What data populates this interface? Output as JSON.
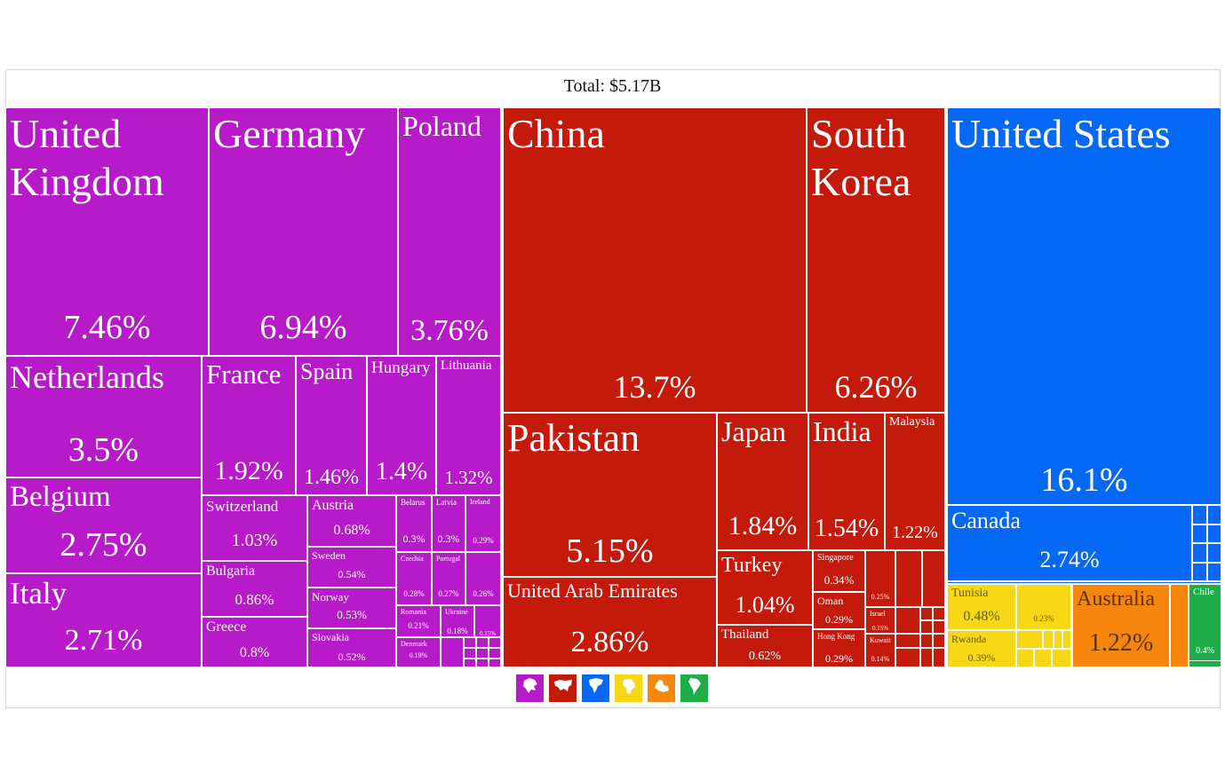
{
  "total_label": "Total: $5.17B",
  "colors": {
    "europe": "#b61ac9",
    "asia": "#c41a0c",
    "north_america": "#0568f6",
    "africa": "#f7d716",
    "oceania": "#f7860c",
    "south_america": "#1fad4a"
  },
  "legend": [
    {
      "name": "europe-icon",
      "color": "#b61ac9"
    },
    {
      "name": "asia-icon",
      "color": "#c41a0c"
    },
    {
      "name": "north-america-icon",
      "color": "#0568f6"
    },
    {
      "name": "africa-icon",
      "color": "#f7d716"
    },
    {
      "name": "oceania-icon",
      "color": "#f7860c"
    },
    {
      "name": "south-america-icon",
      "color": "#1fad4a"
    }
  ],
  "chart_data": {
    "type": "treemap",
    "total": "$5.17B",
    "cells": [
      {
        "name": "United Kingdom",
        "share": "7.46%",
        "continent": "europe"
      },
      {
        "name": "Germany",
        "share": "6.94%",
        "continent": "europe"
      },
      {
        "name": "Poland",
        "share": "3.76%",
        "continent": "europe"
      },
      {
        "name": "Netherlands",
        "share": "3.5%",
        "continent": "europe"
      },
      {
        "name": "Belgium",
        "share": "2.75%",
        "continent": "europe"
      },
      {
        "name": "Italy",
        "share": "2.71%",
        "continent": "europe"
      },
      {
        "name": "France",
        "share": "1.92%",
        "continent": "europe"
      },
      {
        "name": "Spain",
        "share": "1.46%",
        "continent": "europe"
      },
      {
        "name": "Hungary",
        "share": "1.4%",
        "continent": "europe"
      },
      {
        "name": "Lithuania",
        "share": "1.32%",
        "continent": "europe"
      },
      {
        "name": "Switzerland",
        "share": "1.03%",
        "continent": "europe"
      },
      {
        "name": "Bulgaria",
        "share": "0.86%",
        "continent": "europe"
      },
      {
        "name": "Greece",
        "share": "0.8%",
        "continent": "europe"
      },
      {
        "name": "Austria",
        "share": "0.68%",
        "continent": "europe"
      },
      {
        "name": "Sweden",
        "share": "0.54%",
        "continent": "europe"
      },
      {
        "name": "Norway",
        "share": "0.53%",
        "continent": "europe"
      },
      {
        "name": "Slovakia",
        "share": "0.52%",
        "continent": "europe"
      },
      {
        "name": "Belarus",
        "share": "0.3%",
        "continent": "europe"
      },
      {
        "name": "Latvia",
        "share": "0.3%",
        "continent": "europe"
      },
      {
        "name": "Ireland",
        "share": "0.29%",
        "continent": "europe"
      },
      {
        "name": "Czechia",
        "share": "0.28%",
        "continent": "europe"
      },
      {
        "name": "Portugal",
        "share": "0.27%",
        "continent": "europe"
      },
      {
        "name": "",
        "share": "0.26%",
        "continent": "europe"
      },
      {
        "name": "Romania",
        "share": "0.21%",
        "continent": "europe"
      },
      {
        "name": "Ukraine",
        "share": "0.18%",
        "continent": "europe"
      },
      {
        "name": "",
        "share": "0.15%",
        "continent": "europe"
      },
      {
        "name": "Denmark",
        "share": "0.19%",
        "continent": "europe"
      },
      {
        "name": "China",
        "share": "13.7%",
        "continent": "asia"
      },
      {
        "name": "South Korea",
        "share": "6.26%",
        "continent": "asia"
      },
      {
        "name": "Pakistan",
        "share": "5.15%",
        "continent": "asia"
      },
      {
        "name": "United Arab Emirates",
        "share": "2.86%",
        "continent": "asia"
      },
      {
        "name": "Japan",
        "share": "1.84%",
        "continent": "asia"
      },
      {
        "name": "India",
        "share": "1.54%",
        "continent": "asia"
      },
      {
        "name": "Malaysia",
        "share": "1.22%",
        "continent": "asia"
      },
      {
        "name": "Turkey",
        "share": "1.04%",
        "continent": "asia"
      },
      {
        "name": "Thailand",
        "share": "0.62%",
        "continent": "asia"
      },
      {
        "name": "Singapore",
        "share": "0.34%",
        "continent": "asia"
      },
      {
        "name": "Oman",
        "share": "0.29%",
        "continent": "asia"
      },
      {
        "name": "Hong Kong",
        "share": "0.29%",
        "continent": "asia"
      },
      {
        "name": "",
        "share": "0.25%",
        "continent": "asia"
      },
      {
        "name": "Israel",
        "share": "0.15%",
        "continent": "asia"
      },
      {
        "name": "Kuwait",
        "share": "0.14%",
        "continent": "asia"
      },
      {
        "name": "United States",
        "share": "16.1%",
        "continent": "north_america"
      },
      {
        "name": "Canada",
        "share": "2.74%",
        "continent": "north_america"
      },
      {
        "name": "Tunisia",
        "share": "0.48%",
        "continent": "africa"
      },
      {
        "name": "Rwanda",
        "share": "0.39%",
        "continent": "africa"
      },
      {
        "name": "",
        "share": "0.23%",
        "continent": "africa"
      },
      {
        "name": "Australia",
        "share": "1.22%",
        "continent": "oceania"
      },
      {
        "name": "Chile",
        "share": "0.4%",
        "continent": "south_america"
      }
    ]
  }
}
